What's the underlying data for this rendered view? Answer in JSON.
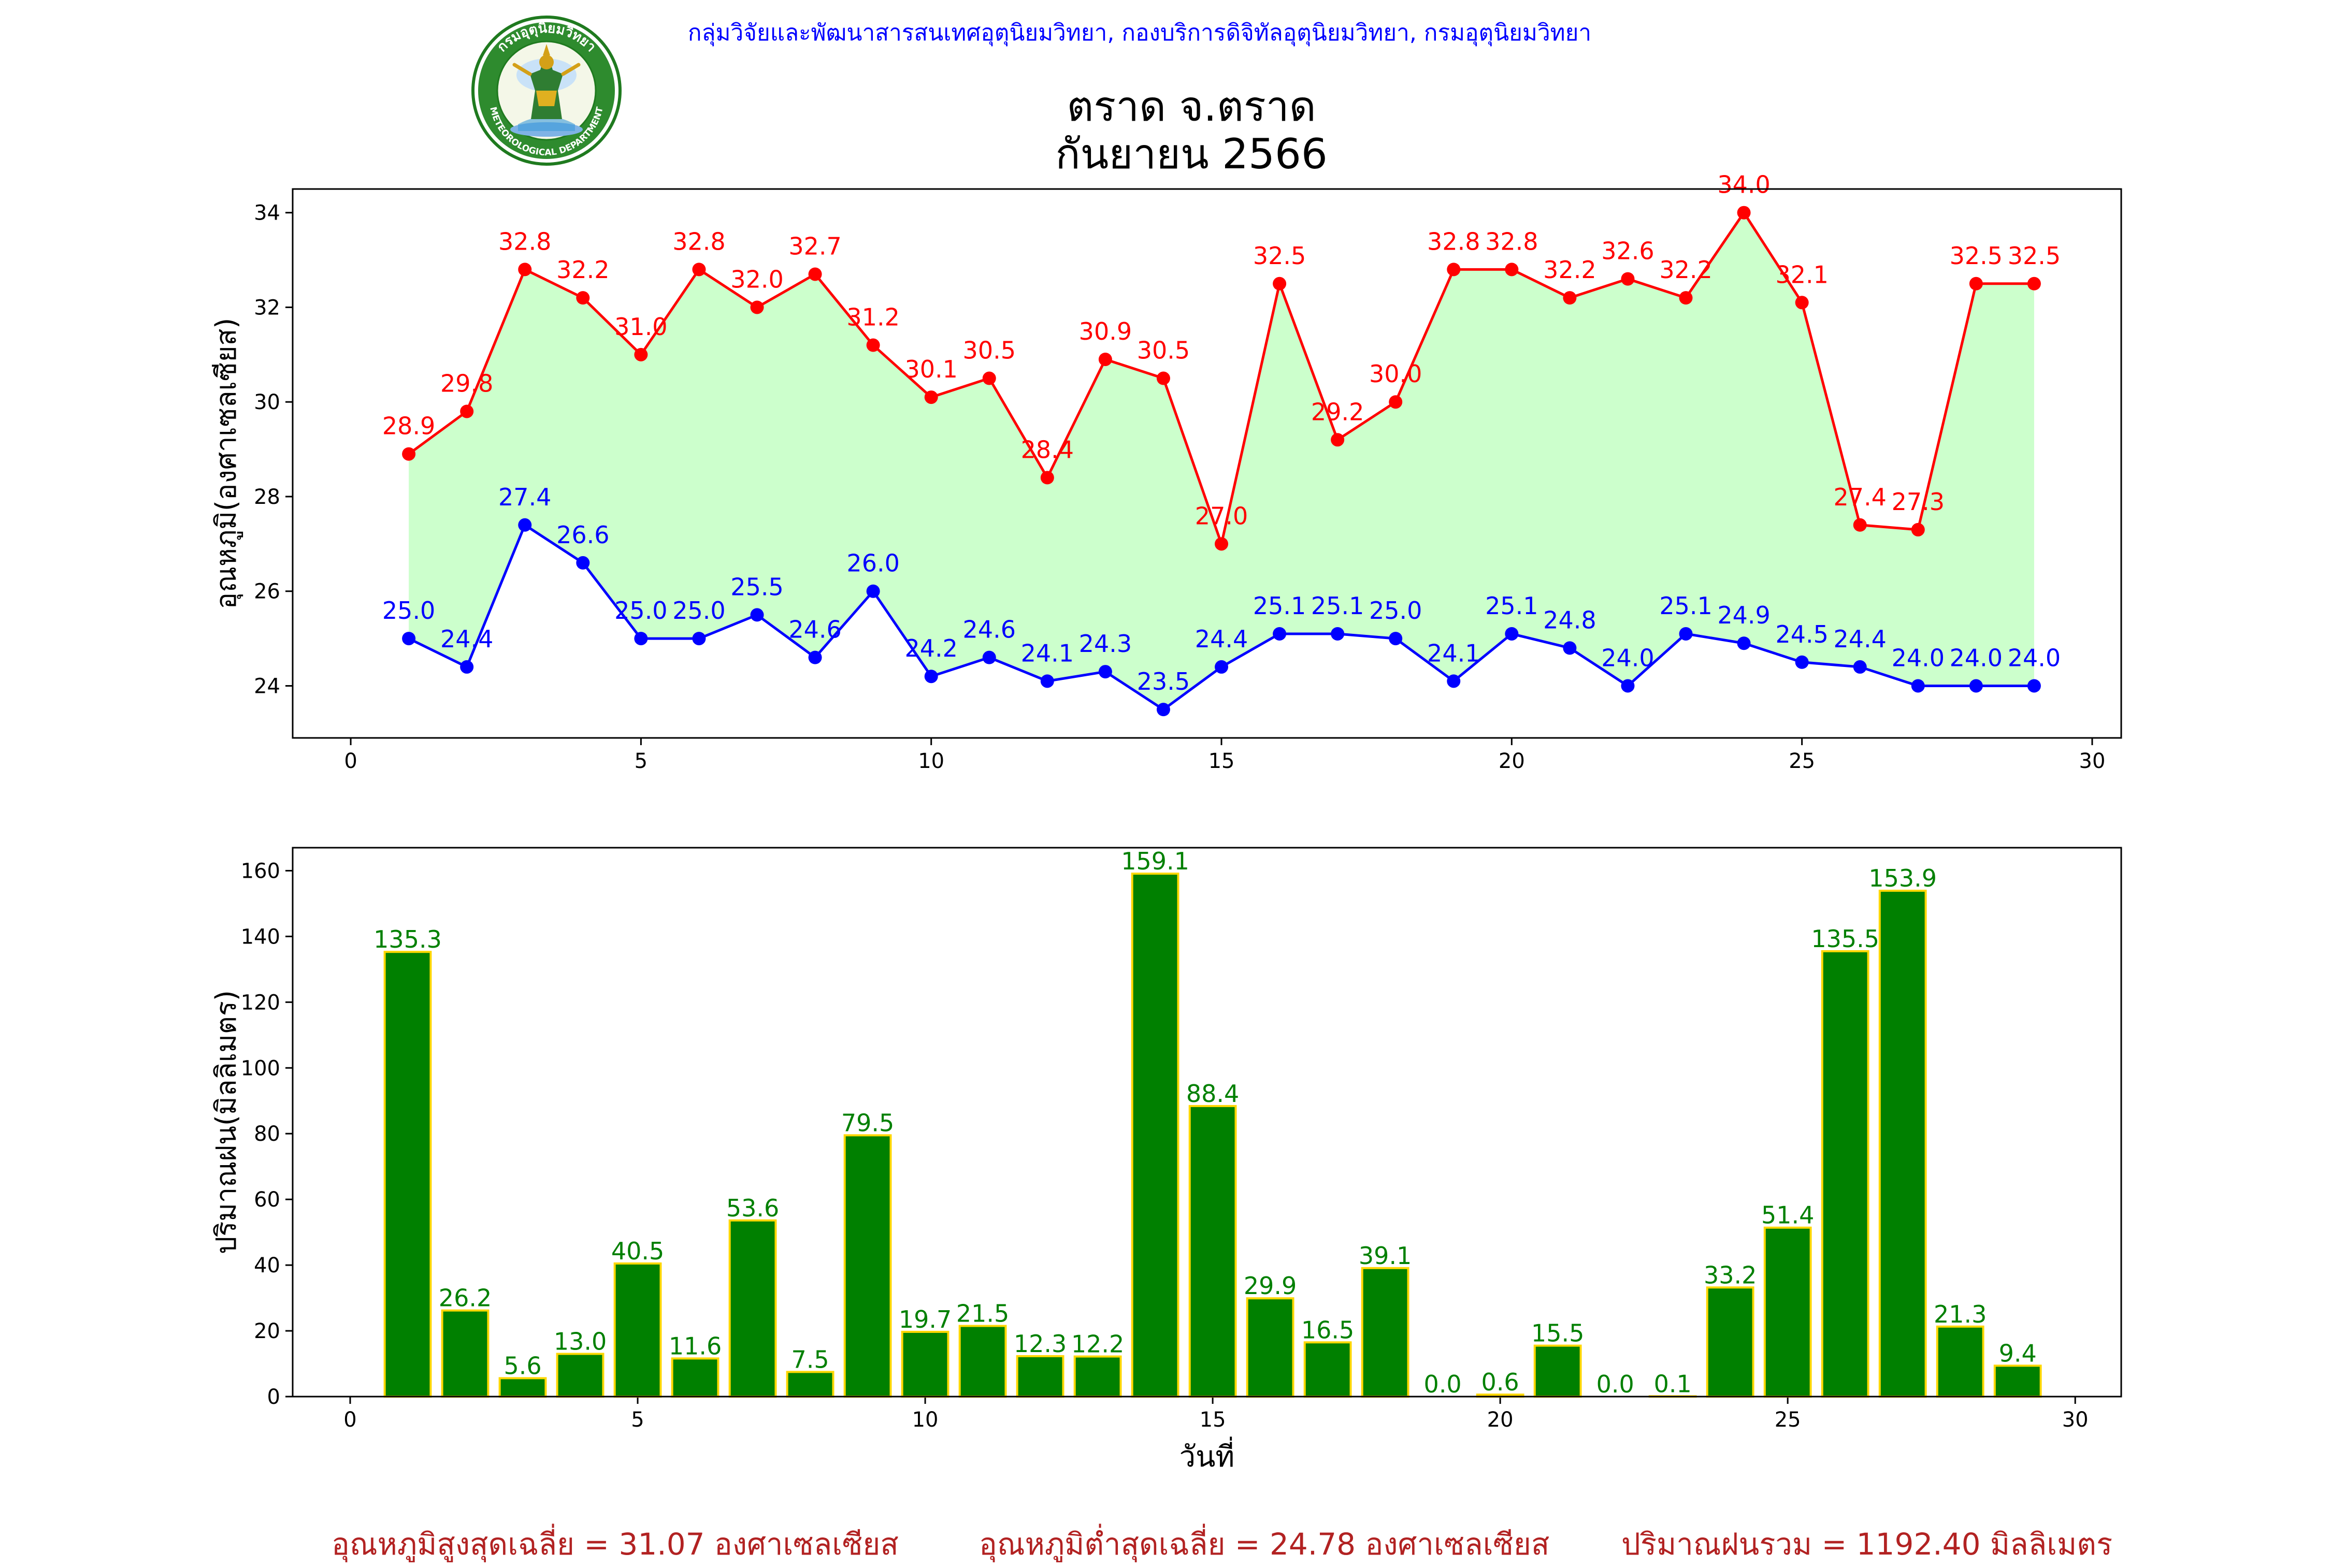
{
  "header": {
    "organization": "กลุ่มวิจัยและพัฒนาสารสนเทศอุตุนิยมวิทยา, กองบริการดิจิทัลอุตุนิยมวิทยา, กรมอุตุนิยมวิทยา",
    "logo_top_text": "กรมอุตุนิยมวิทยา",
    "logo_bottom_text": "METEOROLOGICAL DEPARTMENT"
  },
  "title": {
    "line1": "ตราด จ.ตราด",
    "line2": "กันยายน 2566"
  },
  "chart_data": [
    {
      "type": "line",
      "ylabel": "อุณหภูมิ(องศาเซลเซียส)",
      "xlim": [
        -1,
        30.5
      ],
      "ylim": [
        22.9,
        34.5
      ],
      "xticks": [
        0,
        5,
        10,
        15,
        20,
        25,
        30
      ],
      "yticks": [
        24,
        26,
        28,
        30,
        32,
        34
      ],
      "fill_between": true,
      "fill_color": "#ccffcc",
      "x": [
        1,
        2,
        3,
        4,
        5,
        6,
        7,
        8,
        9,
        10,
        11,
        12,
        13,
        14,
        15,
        16,
        17,
        18,
        19,
        20,
        21,
        22,
        23,
        24,
        25,
        26,
        27,
        28,
        29
      ],
      "series": [
        {
          "color": "#ff0000",
          "values": [
            28.9,
            29.8,
            32.8,
            32.2,
            31.0,
            32.8,
            32.0,
            32.7,
            31.2,
            30.1,
            30.5,
            28.4,
            30.9,
            30.5,
            27.0,
            32.5,
            29.2,
            30.0,
            32.8,
            32.8,
            32.2,
            32.6,
            32.2,
            34.0,
            32.1,
            27.4,
            27.3,
            32.5,
            32.5
          ]
        },
        {
          "color": "#0000ff",
          "values": [
            25.0,
            24.4,
            27.4,
            26.6,
            25.0,
            25.0,
            25.5,
            24.6,
            26.0,
            24.2,
            24.6,
            24.1,
            24.3,
            23.5,
            24.4,
            25.1,
            25.1,
            25.0,
            24.1,
            25.1,
            24.8,
            24.0,
            25.1,
            24.9,
            24.5,
            24.4,
            24.0,
            24.0,
            24.0
          ]
        }
      ]
    },
    {
      "type": "bar",
      "xlabel": "วันที่",
      "ylabel": "ปริมาณฝน(มิลลิเมตร)",
      "xlim": [
        -1,
        30.8
      ],
      "ylim": [
        0,
        167
      ],
      "xticks": [
        0,
        5,
        10,
        15,
        20,
        25,
        30
      ],
      "yticks": [
        0,
        20,
        40,
        60,
        80,
        100,
        120,
        140,
        160
      ],
      "bar_color": "#008000",
      "edge_color": "#ffd700",
      "label_color": "#008000",
      "x": [
        1,
        2,
        3,
        4,
        5,
        6,
        7,
        8,
        9,
        10,
        11,
        12,
        13,
        14,
        15,
        16,
        17,
        18,
        19,
        20,
        21,
        22,
        23,
        24,
        25,
        26,
        27,
        28,
        29
      ],
      "values": [
        135.3,
        26.2,
        5.6,
        13.0,
        40.5,
        11.6,
        53.6,
        7.5,
        79.5,
        19.7,
        21.5,
        12.3,
        12.2,
        159.1,
        88.4,
        29.9,
        16.5,
        39.1,
        0.0,
        0.6,
        15.5,
        0.0,
        0.1,
        33.2,
        51.4,
        135.5,
        153.9,
        21.3,
        9.4
      ]
    }
  ],
  "footer": {
    "max_avg": "อุณหภูมิสูงสุดเฉลี่ย = 31.07 องศาเซลเซียส",
    "min_avg": "อุณหภูมิต่ำสุดเฉลี่ย = 24.78 องศาเซลเซียส",
    "rain_total": "ปริมาณฝนรวม = 1192.40 มิลลิเมตร"
  }
}
